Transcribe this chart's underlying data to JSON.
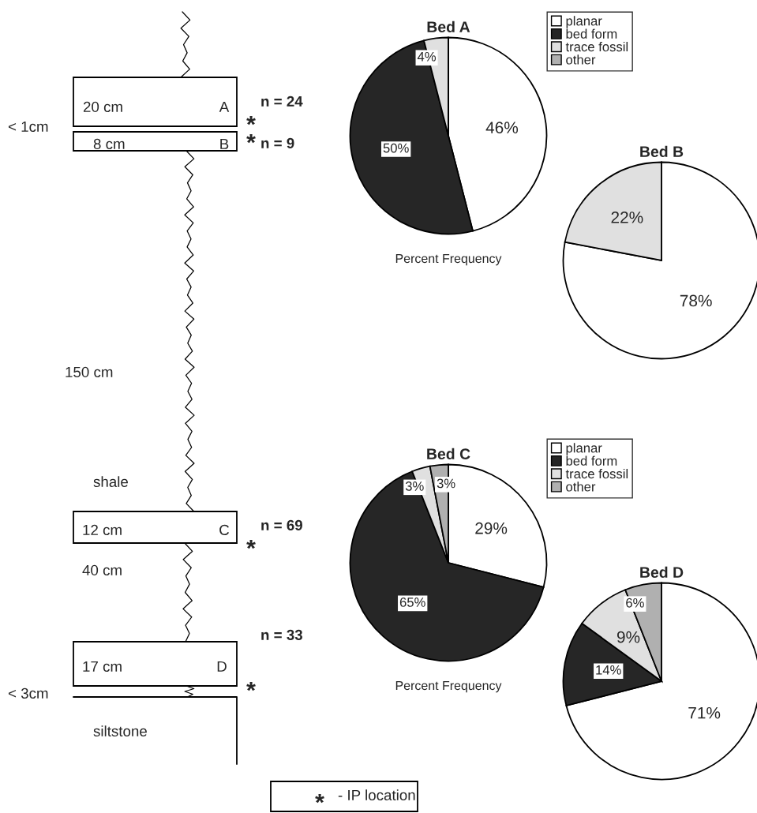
{
  "chart_data": [
    {
      "type": "other",
      "annotations": [
        "20 cm",
        "A",
        "< 1cm",
        "8 cm",
        "B",
        "*",
        "*",
        "n = 24",
        "n = 9",
        "150 cm",
        "shale",
        "12 cm",
        "C",
        "*",
        "n = 69",
        "40 cm",
        "17 cm",
        "D",
        "*",
        "n = 33",
        "< 3cm",
        "siltstone",
        "*",
        "- IP location"
      ]
    },
    {
      "type": "pie",
      "title": "Bed A",
      "categories": [
        "planar",
        "bed form",
        "trace fossil",
        "other"
      ],
      "values": [
        46,
        50,
        4,
        0
      ],
      "colors": [
        "#ffffff",
        "#262626",
        "#e0e0e0",
        "#b0b0b0"
      ],
      "value_labels": [
        "46%",
        "50%",
        "4%",
        null
      ],
      "legend": "top right",
      "annotations": [
        "Percent Frequency"
      ]
    },
    {
      "type": "pie",
      "title": "Bed B",
      "categories": [
        null,
        null
      ],
      "values": [
        78,
        22
      ],
      "colors": [
        "#ffffff",
        "#e0e0e0"
      ],
      "value_labels": [
        "78%",
        "22%"
      ]
    },
    {
      "type": "pie",
      "title": "Bed C",
      "categories": [
        "planar",
        "bed form",
        "trace fossil",
        "other"
      ],
      "values": [
        29,
        65,
        3,
        3
      ],
      "colors": [
        "#ffffff",
        "#262626",
        "#e0e0e0",
        "#b0b0b0"
      ],
      "value_labels": [
        "29%",
        "65%",
        "3%",
        "3%"
      ],
      "legend": "top right",
      "annotations": [
        "Percent Frequency"
      ]
    },
    {
      "type": "pie",
      "title": "Bed D",
      "categories": [
        null,
        null,
        null,
        null
      ],
      "values": [
        71,
        14,
        9,
        6
      ],
      "colors": [
        "#ffffff",
        "#262626",
        "#e0e0e0",
        "#b0b0b0"
      ],
      "value_labels": [
        "71%",
        "14%",
        "9%",
        "6%"
      ]
    }
  ]
}
